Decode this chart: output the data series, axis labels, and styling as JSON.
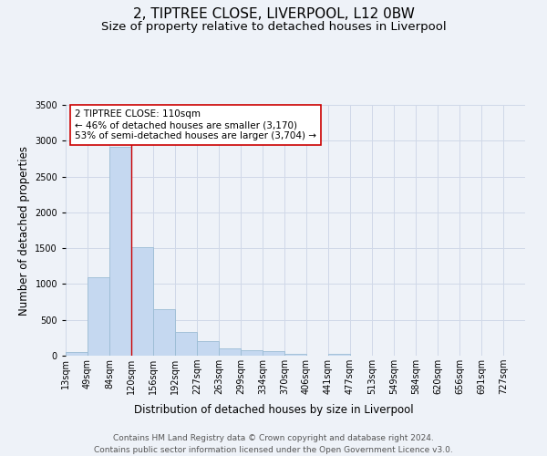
{
  "title": "2, TIPTREE CLOSE, LIVERPOOL, L12 0BW",
  "subtitle": "Size of property relative to detached houses in Liverpool",
  "xlabel": "Distribution of detached houses by size in Liverpool",
  "ylabel": "Number of detached properties",
  "bin_labels": [
    "13sqm",
    "49sqm",
    "84sqm",
    "120sqm",
    "156sqm",
    "192sqm",
    "227sqm",
    "263sqm",
    "299sqm",
    "334sqm",
    "370sqm",
    "406sqm",
    "441sqm",
    "477sqm",
    "513sqm",
    "549sqm",
    "584sqm",
    "620sqm",
    "656sqm",
    "691sqm",
    "727sqm"
  ],
  "bar_heights": [
    50,
    1100,
    2920,
    1510,
    650,
    330,
    200,
    105,
    75,
    60,
    30,
    0,
    20,
    0,
    0,
    0,
    0,
    0,
    0,
    0,
    0
  ],
  "bar_color": "#c5d8f0",
  "bar_edge_color": "#9bbcd4",
  "grid_color": "#d0d8e8",
  "bg_color": "#eef2f8",
  "vline_x": 3,
  "vline_color": "#cc0000",
  "annotation_text": "2 TIPTREE CLOSE: 110sqm\n← 46% of detached houses are smaller (3,170)\n53% of semi-detached houses are larger (3,704) →",
  "annotation_box_color": "#ffffff",
  "annotation_box_edge": "#cc0000",
  "ylim": [
    0,
    3500
  ],
  "yticks": [
    0,
    500,
    1000,
    1500,
    2000,
    2500,
    3000,
    3500
  ],
  "footer_line1": "Contains HM Land Registry data © Crown copyright and database right 2024.",
  "footer_line2": "Contains public sector information licensed under the Open Government Licence v3.0.",
  "title_fontsize": 11,
  "subtitle_fontsize": 9.5,
  "label_fontsize": 8.5,
  "tick_fontsize": 7,
  "annot_fontsize": 7.5,
  "footer_fontsize": 6.5
}
